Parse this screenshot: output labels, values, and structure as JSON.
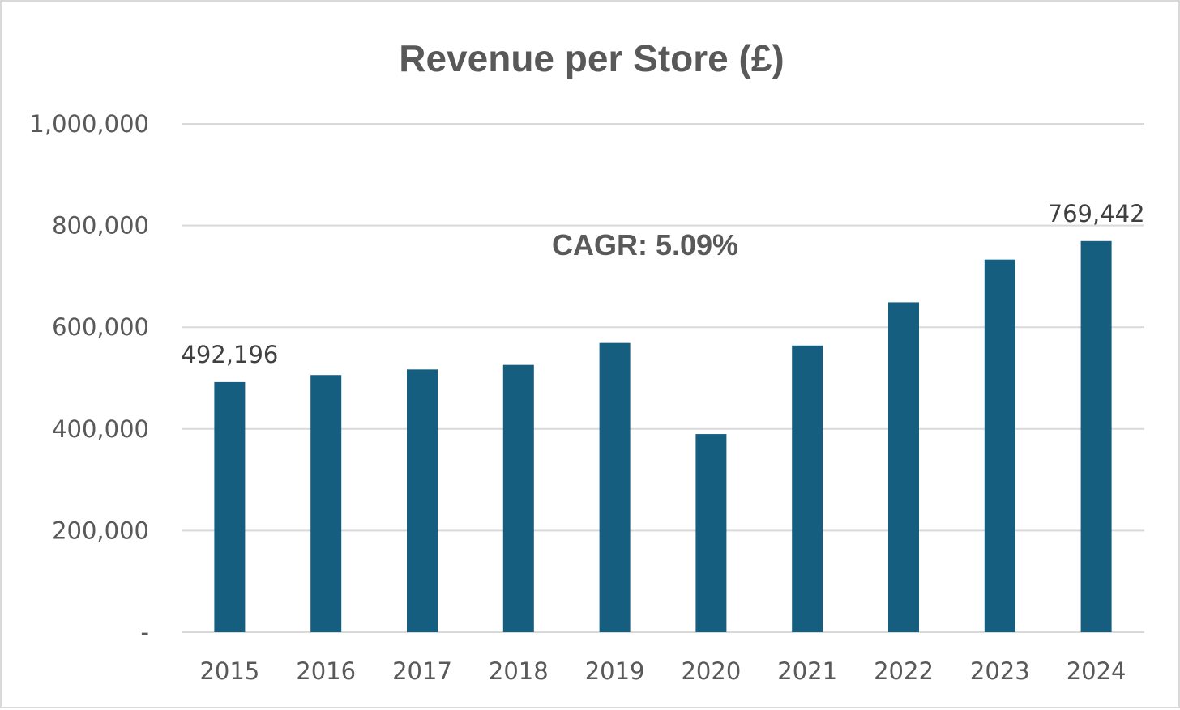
{
  "chart_data": {
    "type": "bar",
    "title": "Revenue per Store (£)",
    "xlabel": "",
    "ylabel": "",
    "categories": [
      "2015",
      "2016",
      "2017",
      "2018",
      "2019",
      "2020",
      "2021",
      "2022",
      "2023",
      "2024"
    ],
    "values": [
      492196,
      506000,
      517000,
      526000,
      569000,
      390000,
      564000,
      649000,
      733000,
      769442
    ],
    "ylim": [
      0,
      1000000
    ],
    "yticks": [
      0,
      200000,
      400000,
      600000,
      800000,
      1000000
    ],
    "ytick_labels": [
      "-",
      "200,000",
      "400,000",
      "600,000",
      "800,000",
      "1,000,000"
    ],
    "data_labels": [
      {
        "category": "2015",
        "text": "492,196"
      },
      {
        "category": "2024",
        "text": "769,442"
      }
    ],
    "annotation": "CAGR: 5.09%",
    "grid": true,
    "legend": "none",
    "bar_color": "#155e80",
    "grid_color": "#d9d9d9"
  }
}
